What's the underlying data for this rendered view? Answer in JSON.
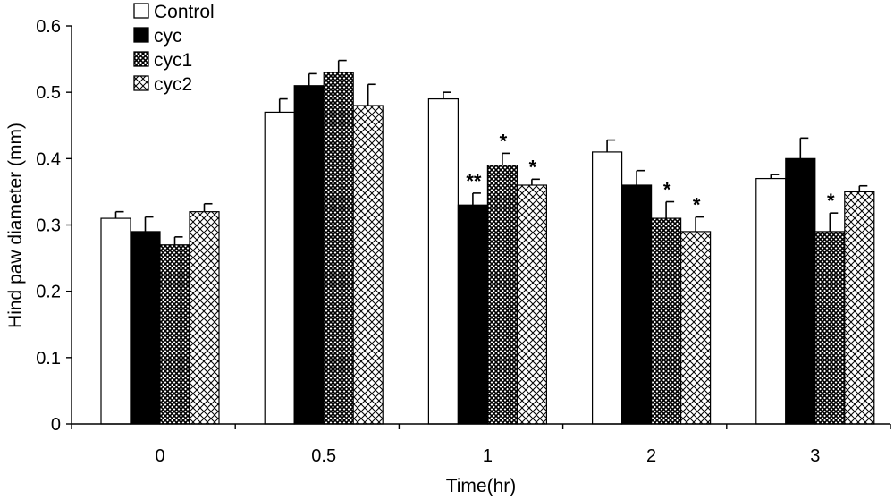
{
  "chart_data": {
    "type": "bar",
    "title": "",
    "xlabel": "Time(hr)",
    "ylabel": "Hind paw diameter (mm)",
    "ylim": [
      0,
      0.6
    ],
    "yticks": [
      "0",
      "0.1",
      "0.2",
      "0.3",
      "0.4",
      "0.5",
      "0.6"
    ],
    "categories": [
      "0",
      "0.5",
      "1",
      "2",
      "3"
    ],
    "legend_position": "top-left",
    "grid": false,
    "series": [
      {
        "name": "Control",
        "pattern": "white",
        "values": [
          0.31,
          0.47,
          0.49,
          0.41,
          0.37
        ],
        "errors": [
          0.01,
          0.02,
          0.01,
          0.018,
          0.006
        ]
      },
      {
        "name": "cyc",
        "pattern": "black",
        "values": [
          0.29,
          0.51,
          0.33,
          0.36,
          0.4
        ],
        "errors": [
          0.022,
          0.018,
          0.018,
          0.022,
          0.031
        ]
      },
      {
        "name": "cyc1",
        "pattern": "dense-check",
        "values": [
          0.27,
          0.53,
          0.39,
          0.31,
          0.29
        ],
        "errors": [
          0.012,
          0.018,
          0.018,
          0.025,
          0.028
        ]
      },
      {
        "name": "cyc2",
        "pattern": "light-cross",
        "values": [
          0.32,
          0.48,
          0.36,
          0.29,
          0.35
        ],
        "errors": [
          0.012,
          0.032,
          0.009,
          0.022,
          0.009
        ]
      }
    ],
    "annotations": [
      {
        "text": "**",
        "category": "1",
        "series": "cyc"
      },
      {
        "text": "*",
        "category": "1",
        "series": "cyc1"
      },
      {
        "text": "*",
        "category": "1",
        "series": "cyc2"
      },
      {
        "text": "*",
        "category": "2",
        "series": "cyc1"
      },
      {
        "text": "*",
        "category": "2",
        "series": "cyc2"
      },
      {
        "text": "*",
        "category": "3",
        "series": "cyc1"
      }
    ]
  }
}
